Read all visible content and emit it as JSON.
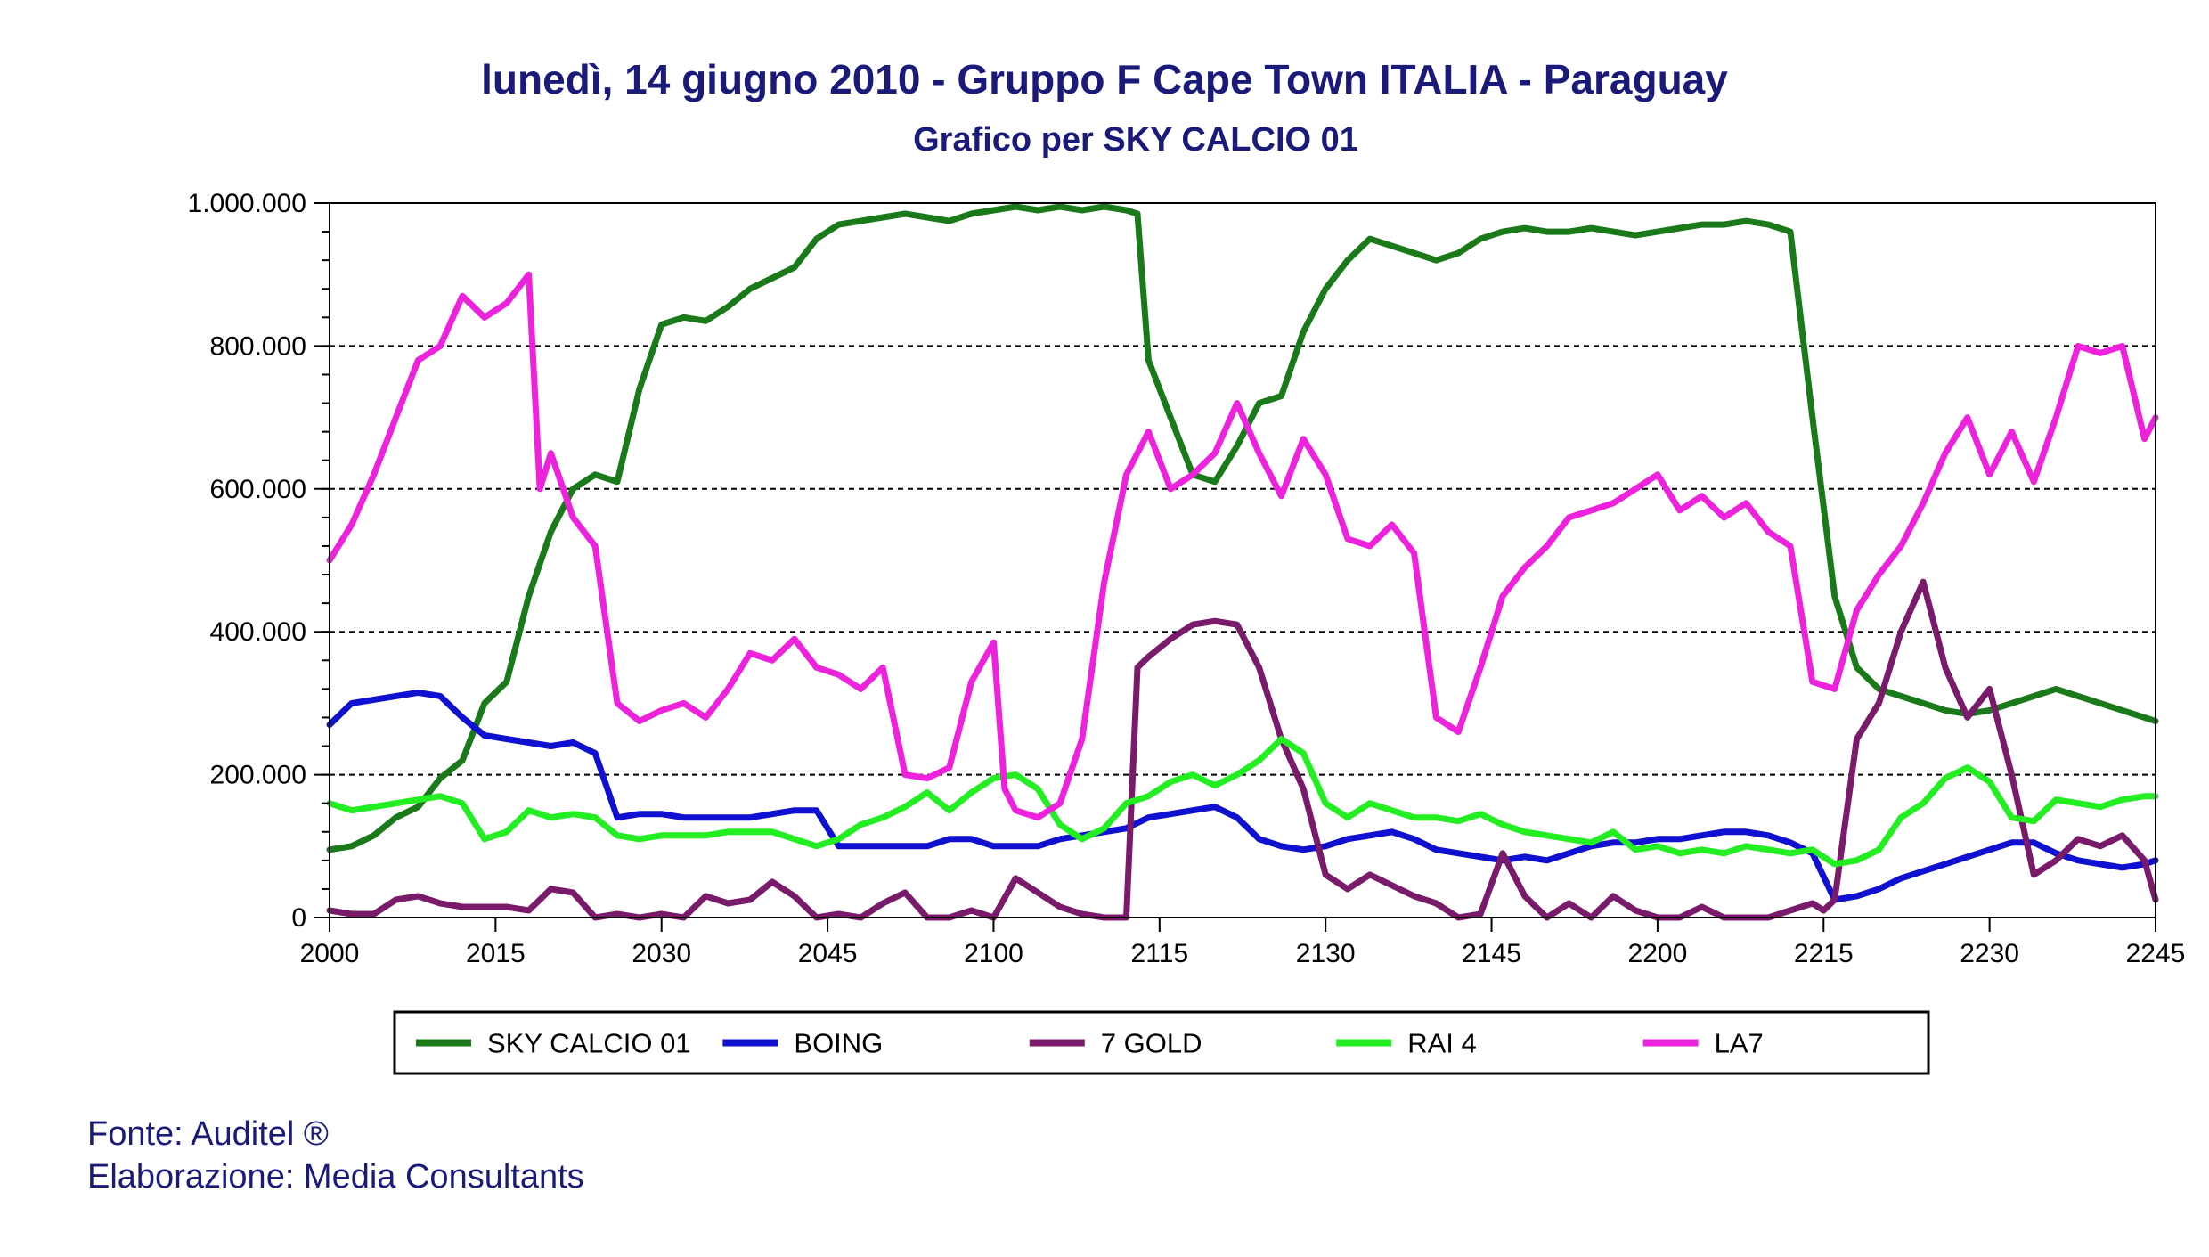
{
  "title": "lunedì, 14 giugno 2010 - Gruppo F Cape Town  ITALIA - Paraguay",
  "subtitle": "Grafico per SKY CALCIO 01",
  "footer": {
    "source": "Fonte: Auditel ®",
    "elaboration": "Elaborazione: Media Consultants"
  },
  "chart_data": {
    "type": "line",
    "title": "lunedì, 14 giugno 2010 - Gruppo F Cape Town  ITALIA - Paraguay",
    "subtitle": "Grafico per SKY CALCIO 01",
    "xlabel": "",
    "ylabel": "",
    "x_tick_labels": [
      "2000",
      "2015",
      "2030",
      "2045",
      "2100",
      "2115",
      "2130",
      "2145",
      "2200",
      "2215",
      "2230",
      "2245"
    ],
    "y_tick_labels": [
      "0",
      "200.000",
      "400.000",
      "600.000",
      "800.000",
      "1.000.000"
    ],
    "ylim": [
      0,
      1000000
    ],
    "xlim_minutes": [
      0,
      165
    ],
    "x_unit": "minutes after 20:00",
    "grid": "horizontal dashed",
    "legend_position": "bottom",
    "series": [
      {
        "name": "SKY CALCIO 01",
        "color": "#1a7a1a",
        "x": [
          0,
          2,
          4,
          6,
          8,
          10,
          12,
          14,
          16,
          18,
          20,
          22,
          24,
          26,
          28,
          30,
          32,
          34,
          36,
          38,
          40,
          42,
          44,
          46,
          48,
          50,
          52,
          54,
          56,
          58,
          60,
          62,
          64,
          66,
          68,
          70,
          72,
          73,
          74,
          76,
          78,
          80,
          82,
          84,
          86,
          88,
          90,
          92,
          94,
          96,
          98,
          100,
          102,
          104,
          106,
          108,
          110,
          112,
          114,
          116,
          118,
          120,
          122,
          124,
          126,
          128,
          130,
          132,
          134,
          136,
          138,
          140,
          142,
          144,
          146,
          148,
          150,
          152,
          154,
          156,
          158,
          160,
          162,
          164,
          165
        ],
        "values": [
          95000,
          100000,
          115000,
          140000,
          155000,
          195000,
          220000,
          300000,
          330000,
          450000,
          540000,
          600000,
          620000,
          610000,
          740000,
          830000,
          840000,
          835000,
          855000,
          880000,
          895000,
          910000,
          950000,
          970000,
          975000,
          980000,
          985000,
          980000,
          975000,
          985000,
          990000,
          995000,
          990000,
          995000,
          990000,
          995000,
          990000,
          985000,
          780000,
          700000,
          620000,
          610000,
          660000,
          720000,
          730000,
          820000,
          880000,
          920000,
          950000,
          940000,
          930000,
          920000,
          930000,
          950000,
          960000,
          965000,
          960000,
          960000,
          965000,
          960000,
          955000,
          960000,
          965000,
          970000,
          970000,
          975000,
          970000,
          960000,
          700000,
          450000,
          350000,
          320000,
          310000,
          300000,
          290000,
          285000,
          290000,
          300000,
          310000,
          320000,
          310000,
          300000,
          290000,
          280000,
          275000
        ]
      },
      {
        "name": "BOING",
        "color": "#1010d0",
        "x": [
          0,
          2,
          4,
          6,
          8,
          10,
          12,
          14,
          16,
          18,
          20,
          22,
          24,
          26,
          28,
          30,
          32,
          34,
          36,
          38,
          40,
          42,
          44,
          46,
          48,
          50,
          52,
          54,
          56,
          58,
          60,
          62,
          64,
          66,
          68,
          70,
          72,
          74,
          76,
          78,
          80,
          82,
          84,
          86,
          88,
          90,
          92,
          94,
          96,
          98,
          100,
          102,
          104,
          106,
          108,
          110,
          112,
          114,
          116,
          118,
          120,
          122,
          124,
          126,
          128,
          130,
          132,
          134,
          136,
          138,
          140,
          142,
          144,
          146,
          148,
          150,
          152,
          154,
          156,
          158,
          160,
          162,
          164,
          165
        ],
        "values": [
          270000,
          300000,
          305000,
          310000,
          315000,
          310000,
          280000,
          255000,
          250000,
          245000,
          240000,
          245000,
          230000,
          140000,
          145000,
          145000,
          140000,
          140000,
          140000,
          140000,
          145000,
          150000,
          150000,
          100000,
          100000,
          100000,
          100000,
          100000,
          110000,
          110000,
          100000,
          100000,
          100000,
          110000,
          115000,
          120000,
          125000,
          140000,
          145000,
          150000,
          155000,
          140000,
          110000,
          100000,
          95000,
          100000,
          110000,
          115000,
          120000,
          110000,
          95000,
          90000,
          85000,
          80000,
          85000,
          80000,
          90000,
          100000,
          105000,
          105000,
          110000,
          110000,
          115000,
          120000,
          120000,
          115000,
          105000,
          90000,
          25000,
          30000,
          40000,
          55000,
          65000,
          75000,
          85000,
          95000,
          105000,
          105000,
          90000,
          80000,
          75000,
          70000,
          75000,
          80000
        ]
      },
      {
        "name": "7 GOLD",
        "color": "#7a1a6a",
        "x": [
          0,
          2,
          4,
          6,
          8,
          10,
          12,
          14,
          16,
          18,
          20,
          22,
          24,
          26,
          28,
          30,
          32,
          34,
          36,
          38,
          40,
          42,
          44,
          46,
          48,
          50,
          52,
          54,
          56,
          58,
          60,
          62,
          64,
          66,
          68,
          70,
          71,
          72,
          73,
          74,
          76,
          78,
          80,
          82,
          84,
          86,
          88,
          90,
          92,
          94,
          96,
          98,
          100,
          102,
          104,
          106,
          108,
          110,
          112,
          114,
          116,
          118,
          120,
          122,
          124,
          126,
          128,
          130,
          132,
          134,
          135,
          136,
          138,
          140,
          142,
          144,
          146,
          148,
          150,
          152,
          154,
          156,
          158,
          160,
          162,
          164,
          165
        ],
        "values": [
          10000,
          5000,
          5000,
          25000,
          30000,
          20000,
          15000,
          15000,
          15000,
          10000,
          40000,
          35000,
          0,
          5000,
          0,
          5000,
          0,
          30000,
          20000,
          25000,
          50000,
          30000,
          0,
          5000,
          0,
          20000,
          35000,
          0,
          0,
          10000,
          0,
          55000,
          35000,
          15000,
          5000,
          0,
          0,
          0,
          350000,
          365000,
          390000,
          410000,
          415000,
          410000,
          350000,
          250000,
          180000,
          60000,
          40000,
          60000,
          45000,
          30000,
          20000,
          0,
          5000,
          90000,
          30000,
          0,
          20000,
          0,
          30000,
          10000,
          0,
          0,
          15000,
          0,
          0,
          0,
          10000,
          20000,
          10000,
          25000,
          250000,
          300000,
          400000,
          470000,
          350000,
          280000,
          320000,
          200000,
          60000,
          80000,
          110000,
          100000,
          115000,
          80000,
          25000
        ]
      },
      {
        "name": "RAI 4",
        "color": "#22ee22",
        "x": [
          0,
          2,
          4,
          6,
          8,
          10,
          12,
          14,
          16,
          18,
          20,
          22,
          24,
          26,
          28,
          30,
          32,
          34,
          36,
          38,
          40,
          42,
          44,
          46,
          48,
          50,
          52,
          54,
          56,
          58,
          60,
          62,
          64,
          66,
          68,
          70,
          72,
          74,
          76,
          78,
          80,
          82,
          84,
          86,
          88,
          90,
          92,
          94,
          96,
          98,
          100,
          102,
          104,
          106,
          108,
          110,
          112,
          114,
          116,
          118,
          120,
          122,
          124,
          126,
          128,
          130,
          132,
          134,
          136,
          138,
          140,
          142,
          144,
          146,
          148,
          150,
          152,
          154,
          156,
          158,
          160,
          162,
          164,
          165
        ],
        "values": [
          160000,
          150000,
          155000,
          160000,
          165000,
          170000,
          160000,
          110000,
          120000,
          150000,
          140000,
          145000,
          140000,
          115000,
          110000,
          115000,
          115000,
          115000,
          120000,
          120000,
          120000,
          110000,
          100000,
          110000,
          130000,
          140000,
          155000,
          175000,
          150000,
          175000,
          195000,
          200000,
          180000,
          130000,
          110000,
          125000,
          160000,
          170000,
          190000,
          200000,
          185000,
          200000,
          220000,
          250000,
          230000,
          160000,
          140000,
          160000,
          150000,
          140000,
          140000,
          135000,
          145000,
          130000,
          120000,
          115000,
          110000,
          105000,
          120000,
          95000,
          100000,
          90000,
          95000,
          90000,
          100000,
          95000,
          90000,
          95000,
          75000,
          80000,
          95000,
          140000,
          160000,
          195000,
          210000,
          190000,
          140000,
          135000,
          165000,
          160000,
          155000,
          165000,
          170000,
          170000
        ]
      },
      {
        "name": "LA7",
        "color": "#ee22dd",
        "x": [
          0,
          2,
          4,
          6,
          8,
          10,
          12,
          14,
          16,
          18,
          19,
          20,
          22,
          24,
          26,
          28,
          30,
          32,
          34,
          36,
          38,
          40,
          42,
          44,
          46,
          48,
          50,
          52,
          54,
          56,
          58,
          60,
          61,
          62,
          64,
          66,
          68,
          70,
          72,
          74,
          76,
          78,
          80,
          82,
          84,
          86,
          88,
          90,
          92,
          94,
          96,
          98,
          100,
          102,
          104,
          106,
          108,
          110,
          112,
          114,
          116,
          118,
          120,
          122,
          124,
          126,
          128,
          130,
          132,
          134,
          136,
          138,
          140,
          142,
          144,
          146,
          148,
          150,
          152,
          154,
          156,
          158,
          160,
          162,
          164,
          165
        ],
        "values": [
          500000,
          550000,
          620000,
          700000,
          780000,
          800000,
          870000,
          840000,
          860000,
          900000,
          600000,
          650000,
          560000,
          520000,
          300000,
          275000,
          290000,
          300000,
          280000,
          320000,
          370000,
          360000,
          390000,
          350000,
          340000,
          320000,
          350000,
          200000,
          195000,
          210000,
          330000,
          385000,
          180000,
          150000,
          140000,
          160000,
          250000,
          470000,
          620000,
          680000,
          600000,
          620000,
          650000,
          720000,
          650000,
          590000,
          670000,
          620000,
          530000,
          520000,
          550000,
          510000,
          280000,
          260000,
          350000,
          450000,
          490000,
          520000,
          560000,
          570000,
          580000,
          600000,
          620000,
          570000,
          590000,
          560000,
          580000,
          540000,
          520000,
          330000,
          320000,
          430000,
          480000,
          520000,
          580000,
          650000,
          700000,
          620000,
          680000,
          610000,
          700000,
          800000,
          790000,
          800000,
          670000,
          700000
        ]
      }
    ]
  }
}
